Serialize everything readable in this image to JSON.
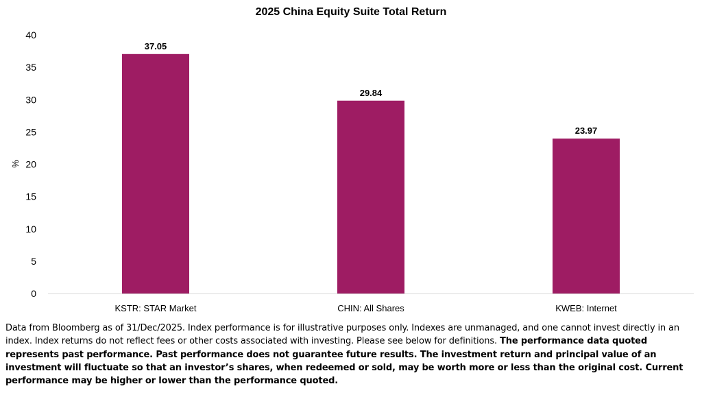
{
  "chart_data": {
    "type": "bar",
    "title": "2025 China Equity Suite Total Return",
    "ylabel": "%",
    "xlabel": "",
    "ylim": [
      0,
      40
    ],
    "yticks": [
      0,
      5,
      10,
      15,
      20,
      25,
      30,
      35,
      40
    ],
    "grid": false,
    "bar_color": "#9e1c63",
    "categories": [
      "KSTR: STAR Market",
      "CHIN: All Shares",
      "KWEB: Internet"
    ],
    "values": [
      37.05,
      29.84,
      23.97
    ],
    "data_labels": [
      "37.05",
      "29.84",
      "23.97"
    ]
  },
  "footnote": {
    "plain": "Data from Bloomberg as of 31/Dec/2025. Index performance is for illustrative purposes only. Indexes are unmanaged, and one cannot invest directly in an index. Index returns do not reflect fees or other costs associated with investing. Please see below for definitions.",
    "bold": "The performance data quoted represents past performance. Past performance does not guarantee future results. The investment return and principal value of an investment will fluctuate so that an investor’s shares, when redeemed or sold, may be worth more or less than the original cost. Current performance may be higher or lower than the performance quoted."
  }
}
